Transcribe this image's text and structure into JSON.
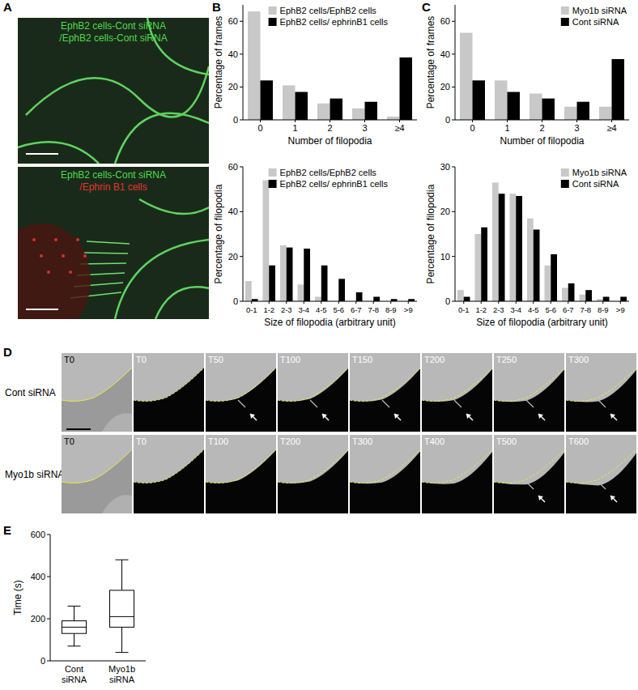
{
  "panel_labels": [
    "A",
    "B",
    "C",
    "D",
    "E"
  ],
  "images": {
    "A": [
      {
        "caption": [
          {
            "text": "EphB2 cells-Cont siRNA",
            "color": "#4cd94c"
          },
          {
            "text": "/EphB2 cells-Cont siRNA",
            "color": "#4cd94c"
          }
        ]
      },
      {
        "caption": [
          {
            "text": "EphB2 cells-Cont siRNA",
            "color": "#4cd94c"
          },
          {
            "text": "/Ephrin B1 cells",
            "color": "#e0352a"
          }
        ]
      }
    ],
    "D": [
      {
        "label": "Cont siRNA",
        "frames": [
          "T0",
          "T0",
          "T50",
          "T100",
          "T150",
          "T200",
          "T250",
          "T300"
        ]
      },
      {
        "label": "Myo1b siRNA",
        "frames": [
          "T0",
          "T0",
          "T100",
          "T200",
          "T300",
          "T400",
          "T500",
          "T600"
        ]
      }
    ]
  },
  "chart_data": [
    {
      "type": "bar",
      "y_label": "Percentage of frames",
      "x_label": "Number of filopodia",
      "categories": [
        "0",
        "1",
        "2",
        "3",
        "≥4"
      ],
      "series": [
        {
          "name": "EphB2 cells/EphB2 cells",
          "color": "#c8c8c8",
          "values": [
            66,
            21,
            10,
            7,
            2
          ]
        },
        {
          "name": "EphB2 cells/ ephrinB1 cells",
          "color": "#000000",
          "values": [
            24,
            17,
            13,
            11,
            38
          ]
        }
      ],
      "ylim": [
        0,
        70
      ],
      "yticks": [
        0,
        20,
        40,
        60
      ],
      "legend": "top-right"
    },
    {
      "type": "bar",
      "y_label": "Percentage of filopodia",
      "x_label": "Size of filopodia (arbitrary unit)",
      "categories": [
        "0-1",
        "1-2",
        "2-3",
        "3-4",
        "4-5",
        "5-6",
        "6-7",
        "7-8",
        "8-9",
        ">9"
      ],
      "series": [
        {
          "name": "EphB2 cells/EphB2 cells",
          "color": "#c8c8c8",
          "values": [
            9,
            54,
            25,
            7.5,
            2,
            0,
            0,
            0,
            0,
            0
          ]
        },
        {
          "name": "EphB2 cells/ ephrinB1 cells",
          "color": "#000000",
          "values": [
            1,
            16,
            24,
            23.5,
            16,
            10,
            4,
            2,
            1,
            1
          ]
        }
      ],
      "ylim": [
        0,
        60
      ],
      "yticks": [
        0,
        20,
        40,
        60
      ],
      "legend": "top-right"
    },
    {
      "type": "bar",
      "y_label": "Percentage of frames",
      "x_label": "Number of filopodia",
      "categories": [
        "0",
        "1",
        "2",
        "3",
        "≥4"
      ],
      "series": [
        {
          "name": "Myo1b siRNA",
          "color": "#c8c8c8",
          "values": [
            53,
            24,
            16,
            8,
            8
          ]
        },
        {
          "name": "Cont siRNA",
          "color": "#000000",
          "values": [
            24,
            17,
            13,
            11,
            37
          ]
        }
      ],
      "ylim": [
        0,
        70
      ],
      "yticks": [
        0,
        20,
        40,
        60
      ],
      "legend": "top-right"
    },
    {
      "type": "bar",
      "y_label": "Percentage of filopodia",
      "x_label": "Size of filopodia (arbitrary unit)",
      "categories": [
        "0-1",
        "1-2",
        "2-3",
        "3-4",
        "4-5",
        "5-6",
        "6-7",
        "7-8",
        "8-9",
        ">9"
      ],
      "series": [
        {
          "name": "Myo1b siRNA",
          "color": "#c8c8c8",
          "values": [
            2.5,
            15,
            26.5,
            24,
            18.5,
            8,
            3,
            1.5,
            0.5,
            0
          ]
        },
        {
          "name": "Cont siRNA",
          "color": "#000000",
          "values": [
            1,
            16.5,
            24,
            23.5,
            16,
            10.5,
            4,
            2.5,
            1,
            1
          ]
        }
      ],
      "ylim": [
        0,
        30
      ],
      "yticks": [
        0,
        10,
        20,
        30
      ],
      "legend": "top-right"
    },
    {
      "type": "box",
      "y_label": "Time (s)",
      "categories": [
        "Cont siRNA",
        "Myo1b siRNA"
      ],
      "min": [
        70,
        40
      ],
      "q1": [
        130,
        160
      ],
      "median": [
        160,
        210
      ],
      "q3": [
        190,
        335
      ],
      "max": [
        260,
        480
      ],
      "ylim": [
        0,
        600
      ],
      "yticks": [
        0,
        200,
        400,
        600
      ]
    }
  ]
}
